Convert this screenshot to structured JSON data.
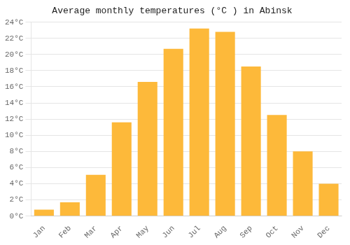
{
  "chart_data": {
    "type": "bar",
    "title": "Average monthly temperatures (°C ) in Abinsk",
    "categories": [
      "Jan",
      "Feb",
      "Mar",
      "Apr",
      "May",
      "Jun",
      "Jul",
      "Aug",
      "Sep",
      "Oct",
      "Nov",
      "Dec"
    ],
    "values": [
      0.8,
      1.7,
      5.1,
      11.6,
      16.6,
      20.7,
      23.2,
      22.8,
      18.5,
      12.5,
      8.0,
      4.0
    ],
    "color": "#FDB93A",
    "ylim": [
      0,
      24
    ],
    "yticks": [
      {
        "value": 0,
        "label": "0°C"
      },
      {
        "value": 2,
        "label": "2°C"
      },
      {
        "value": 4,
        "label": "4°C"
      },
      {
        "value": 6,
        "label": "6°C"
      },
      {
        "value": 8,
        "label": "8°C"
      },
      {
        "value": 10,
        "label": "10°C"
      },
      {
        "value": 12,
        "label": "12°C"
      },
      {
        "value": 14,
        "label": "14°C"
      },
      {
        "value": 16,
        "label": "16°C"
      },
      {
        "value": 18,
        "label": "18°C"
      },
      {
        "value": 20,
        "label": "20°C"
      },
      {
        "value": 22,
        "label": "22°C"
      },
      {
        "value": 24,
        "label": "24°C"
      }
    ],
    "grid": true
  }
}
